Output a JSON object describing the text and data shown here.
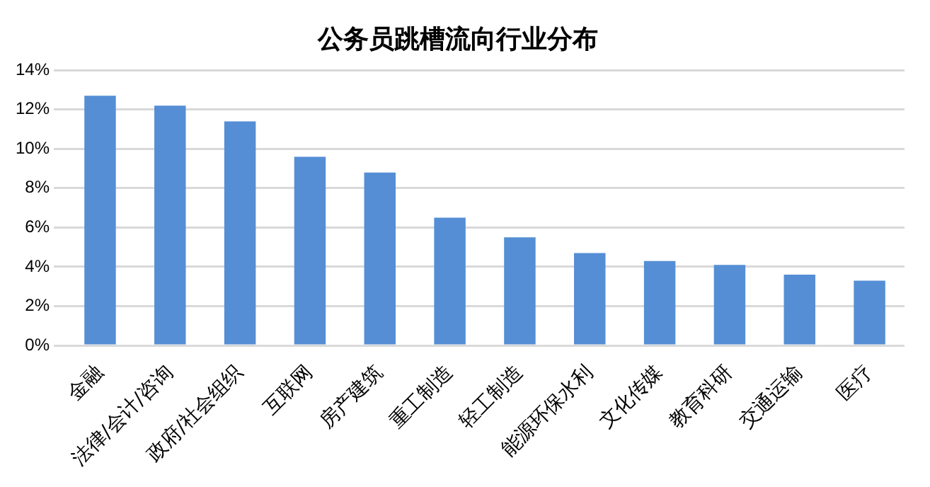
{
  "chart_data": {
    "type": "bar",
    "title": "公务员跳槽流向行业分布",
    "categories": [
      "金融",
      "法律/会计/咨询",
      "政府/社会组织",
      "互联网",
      "房产建筑",
      "重工制造",
      "轻工制造",
      "能源环保水利",
      "文化传媒",
      "教育科研",
      "交通运输",
      "医疗"
    ],
    "values": [
      12.7,
      12.2,
      11.4,
      9.6,
      8.8,
      6.5,
      5.5,
      4.7,
      4.3,
      4.1,
      3.6,
      3.3
    ],
    "color": "#558ed5",
    "ylim": [
      0,
      14
    ],
    "yticks": [
      {
        "value": 0,
        "label": "0%"
      },
      {
        "value": 2,
        "label": "2%"
      },
      {
        "value": 4,
        "label": "4%"
      },
      {
        "value": 6,
        "label": "6%"
      },
      {
        "value": 8,
        "label": "8%"
      },
      {
        "value": 10,
        "label": "10%"
      },
      {
        "value": 12,
        "label": "12%"
      },
      {
        "value": 14,
        "label": "14%"
      }
    ],
    "grid": "y"
  }
}
